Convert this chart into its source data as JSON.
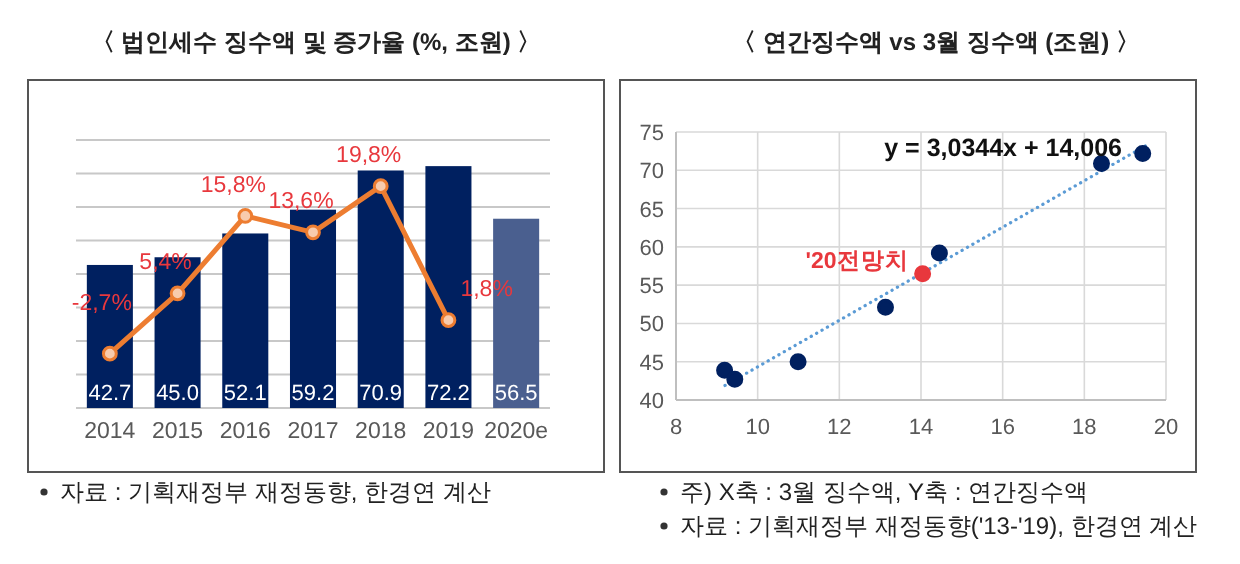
{
  "chart_data": [
    {
      "type": "bar",
      "title": "〈 법인세수 징수액 및 증가율 (%, 조원) 〉",
      "categories": [
        "2014",
        "2015",
        "2016",
        "2017",
        "2018",
        "2019",
        "2020e"
      ],
      "series": [
        {
          "type": "bar",
          "colors": [
            "#002060",
            "#002060",
            "#002060",
            "#002060",
            "#002060",
            "#002060",
            "#4a5f8f"
          ],
          "values": [
            42.7,
            45.0,
            52.1,
            59.2,
            70.9,
            72.2,
            56.5
          ],
          "value_labels": [
            "42.7",
            "45.0",
            "52.1",
            "59.2",
            "70.9",
            "72.2",
            "56.5"
          ]
        },
        {
          "type": "line",
          "axis": "y2",
          "color": "#ed7d31",
          "values": [
            -2.7,
            5.4,
            15.8,
            13.6,
            19.8,
            1.8,
            null
          ],
          "value_labels": [
            "-2,7%",
            "5,4%",
            "15,8%",
            "13,6%",
            "19,8%",
            "1,8%",
            null
          ]
        }
      ],
      "ylim": [
        0,
        80
      ],
      "yticks": [
        {
          "value": 0,
          "label": null
        },
        {
          "value": 10,
          "label": null
        },
        {
          "value": 20,
          "label": null
        },
        {
          "value": 30,
          "label": null
        },
        {
          "value": 40,
          "label": null
        },
        {
          "value": 50,
          "label": null
        },
        {
          "value": 60,
          "label": null
        },
        {
          "value": 70,
          "label": null
        },
        {
          "value": 80,
          "label": null
        }
      ],
      "y2lim": [
        -10,
        26
      ],
      "grid": "y",
      "tick_labels": "x",
      "marker": "circle",
      "annotations": [
        "자료 : 기획재정부 재정동향, 한경연 계산"
      ]
    },
    {
      "type": "scatter",
      "title": "〈 연간징수액 vs 3월 징수액 (조원) 〉",
      "series": [
        {
          "type": "scatter",
          "color": "#002060",
          "x": [
            9.19,
            9.44,
            10.99,
            13.13,
            14.45,
            18.42,
            19.43
          ],
          "values": [
            43.9,
            42.7,
            45.0,
            52.1,
            59.2,
            70.9,
            72.2
          ]
        },
        {
          "type": "scatter",
          "color": "#e8383d",
          "x": [
            14.04
          ],
          "values": [
            56.5
          ]
        },
        {
          "type": "line",
          "color": "#5b9bd5",
          "line_style": "dotted",
          "marker": "none",
          "x": [
            9.2,
            19.5
          ],
          "values": [
            41.9,
            73.2
          ]
        }
      ],
      "xlim": [
        8,
        20
      ],
      "xticks": [
        8,
        10,
        12,
        14,
        16,
        18,
        20
      ],
      "ylim": [
        40,
        75
      ],
      "yticks": [
        40,
        45,
        50,
        55,
        60,
        65,
        70,
        75
      ],
      "grid": true,
      "marker": "circle",
      "annotations": [
        "y = 3,0344x + 14,006",
        {
          "text": "'20전망치",
          "x": 14.04,
          "y": 56.5
        },
        "주) X축 : 3월 징수액, Y축 : 연간징수액",
        "자료 : 기획재정부 재정동향('13-'19), 한경연 계산"
      ]
    }
  ]
}
